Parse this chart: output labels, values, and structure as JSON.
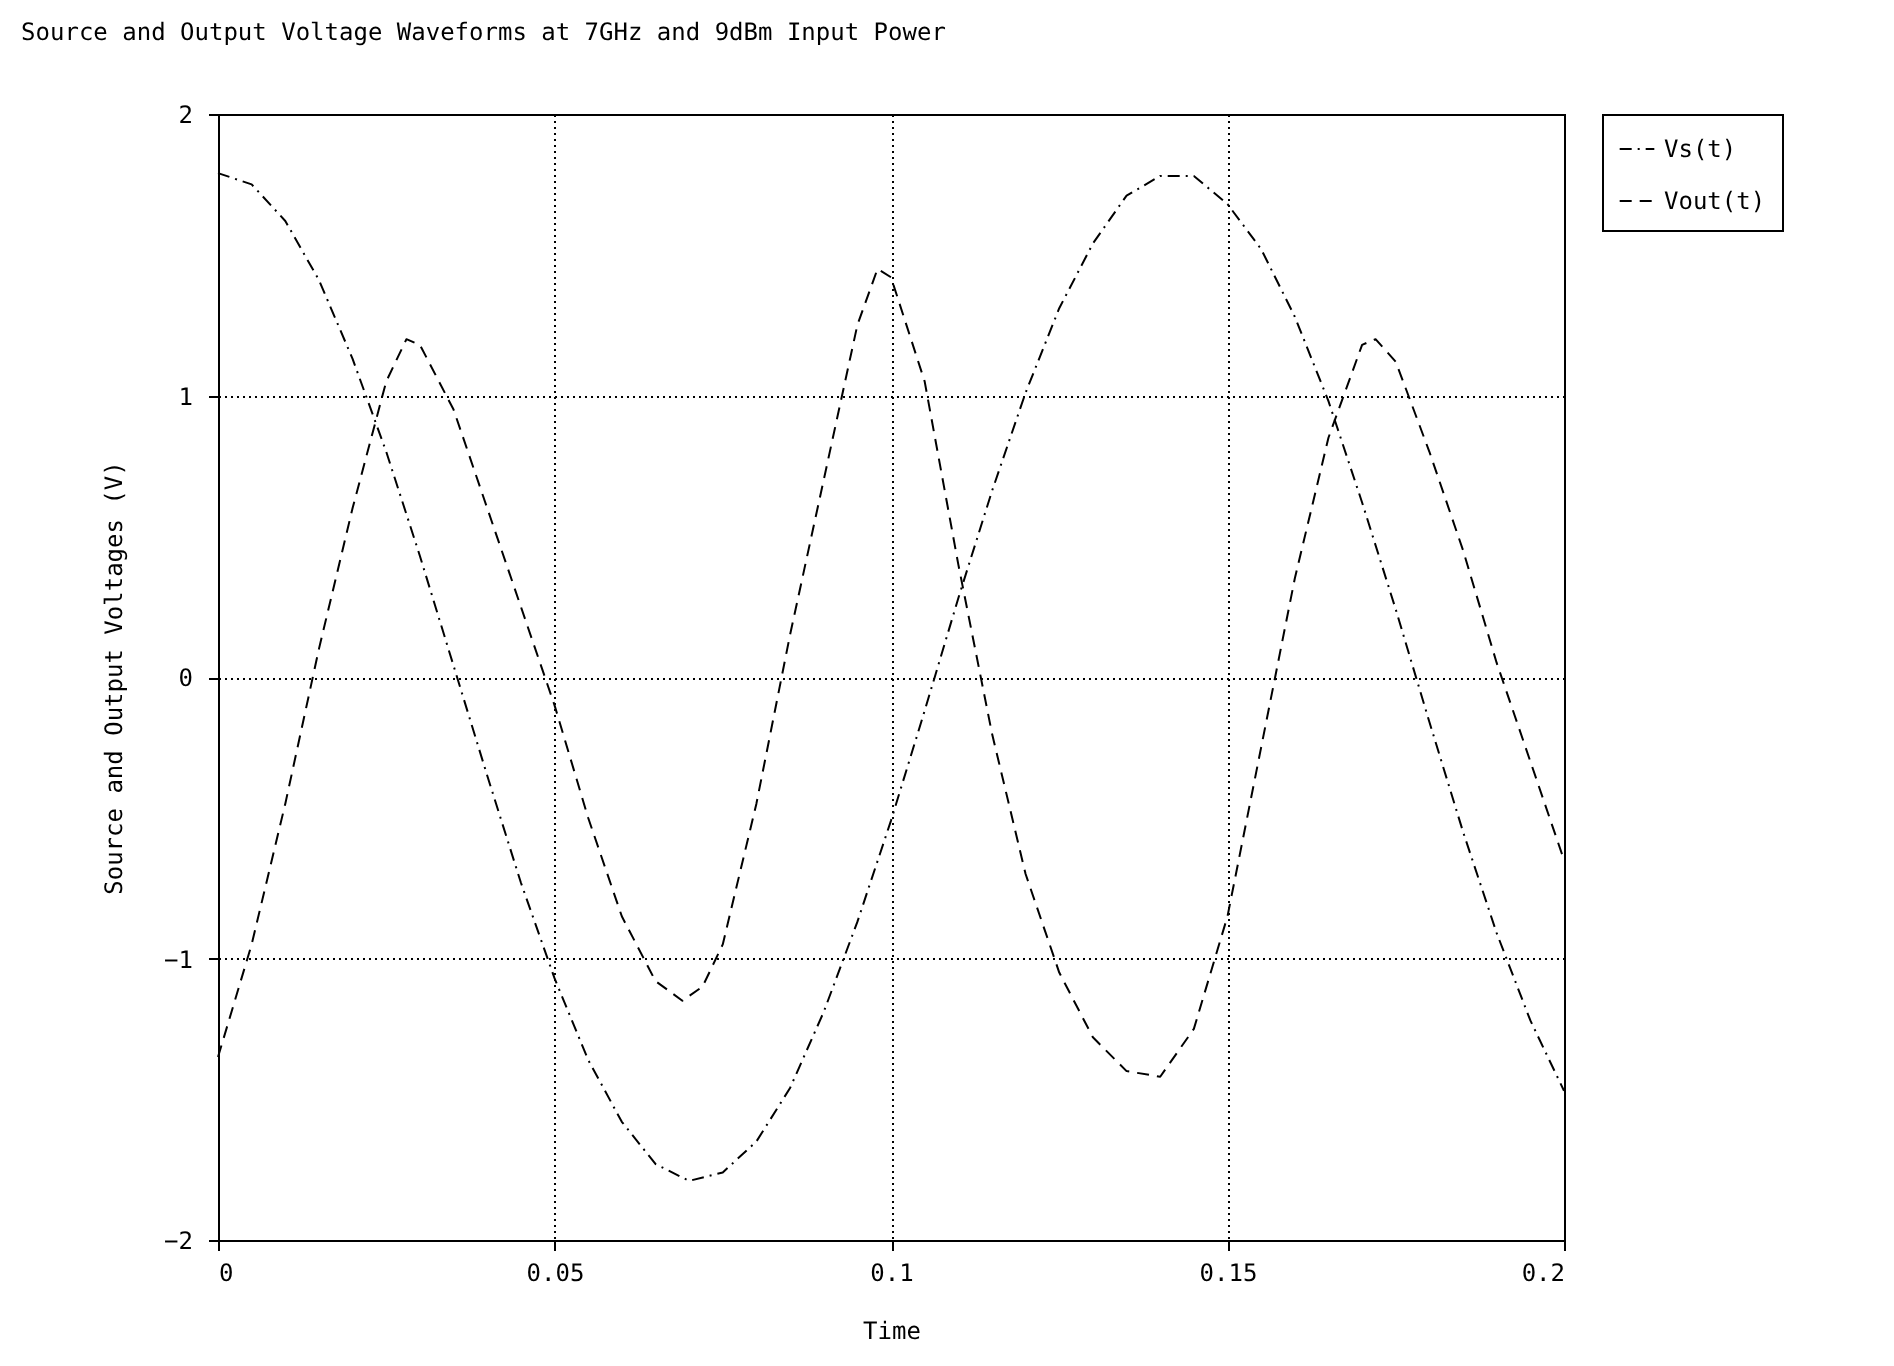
{
  "chart_data": {
    "type": "line",
    "title": "Source and Output Voltage Waveforms at 7GHz and 9dBm Input Power",
    "xlabel": "Time",
    "ylabel": "Source and Output Voltages (V)",
    "xlim": [
      0,
      0.2
    ],
    "xticks": [
      0,
      0.05,
      0.1,
      0.15,
      0.2
    ],
    "ylim": [
      -2,
      2
    ],
    "yticks": [
      -2,
      -1,
      0,
      1,
      2
    ],
    "grid": true,
    "legend": "top right",
    "series": [
      {
        "name": "Vs(t)",
        "color": "#000000",
        "line_style": "dashdot",
        "x": [
          0,
          0.005,
          0.01,
          0.015,
          0.02,
          0.025,
          0.03,
          0.035,
          0.04,
          0.045,
          0.05,
          0.055,
          0.06,
          0.065,
          0.07,
          0.075,
          0.08,
          0.085,
          0.09,
          0.095,
          0.1,
          0.105,
          0.11,
          0.115,
          0.12,
          0.125,
          0.13,
          0.135,
          0.14,
          0.145,
          0.15,
          0.155,
          0.16,
          0.165,
          0.17,
          0.175,
          0.18,
          0.185,
          0.19,
          0.195,
          0.2
        ],
        "values": [
          1.79,
          1.75,
          1.62,
          1.41,
          1.13,
          0.8,
          0.43,
          0.04,
          -0.35,
          -0.73,
          -1.07,
          -1.36,
          -1.58,
          -1.73,
          -1.79,
          -1.76,
          -1.65,
          -1.46,
          -1.19,
          -0.87,
          -0.51,
          -0.12,
          0.28,
          0.66,
          1.01,
          1.31,
          1.54,
          1.71,
          1.78,
          1.78,
          1.68,
          1.52,
          1.28,
          0.98,
          0.62,
          0.24,
          -0.16,
          -0.55,
          -0.91,
          -1.22,
          -1.47
        ]
      },
      {
        "name": "Vout(t)",
        "color": "#000000",
        "line_style": "dashed",
        "x": [
          0,
          0.005,
          0.01,
          0.015,
          0.02,
          0.025,
          0.028,
          0.03,
          0.035,
          0.04,
          0.045,
          0.05,
          0.055,
          0.06,
          0.065,
          0.069,
          0.072,
          0.075,
          0.08,
          0.085,
          0.09,
          0.095,
          0.098,
          0.1,
          0.105,
          0.11,
          0.115,
          0.12,
          0.125,
          0.13,
          0.135,
          0.14,
          0.145,
          0.15,
          0.155,
          0.16,
          0.165,
          0.17,
          0.172,
          0.175,
          0.18,
          0.185,
          0.19,
          0.195,
          0.2
        ],
        "values": [
          -1.35,
          -0.95,
          -0.45,
          0.1,
          0.6,
          1.05,
          1.2,
          1.18,
          0.95,
          0.6,
          0.25,
          -0.1,
          -0.5,
          -0.85,
          -1.08,
          -1.15,
          -1.1,
          -0.95,
          -0.45,
          0.15,
          0.7,
          1.25,
          1.45,
          1.42,
          1.05,
          0.4,
          -0.2,
          -0.7,
          -1.05,
          -1.28,
          -1.4,
          -1.42,
          -1.25,
          -0.85,
          -0.25,
          0.35,
          0.85,
          1.18,
          1.2,
          1.12,
          0.8,
          0.45,
          0.05,
          -0.3,
          -0.65
        ]
      }
    ]
  }
}
